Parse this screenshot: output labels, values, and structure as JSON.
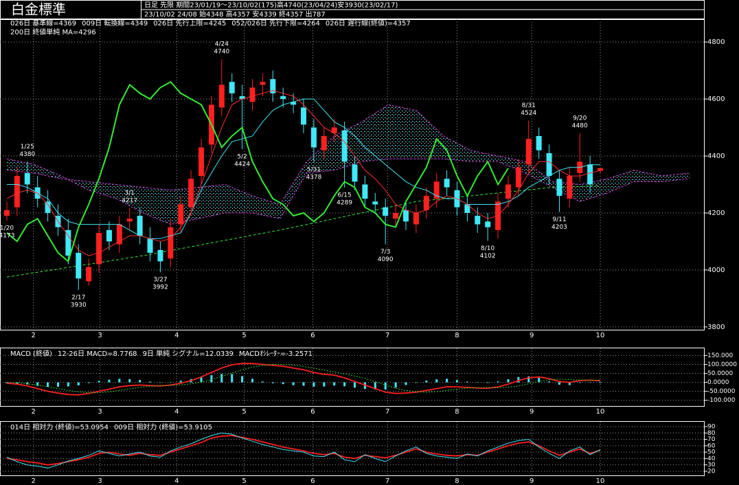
{
  "chart_data": [
    {
      "type": "candlestick",
      "header": {
        "title": "白金標準",
        "line1": "日足 先限 期間23/01/19～23/10/02(175)高4740(23/04/24)安3930(23/02/17)",
        "line2": "23/10/02 24/08 始4348 高4357 安4339 終4357 出787"
      },
      "up_color": "#ff2020",
      "down_color": "#40e8f8",
      "open": [
        4190,
        4220,
        4340,
        4290,
        4240,
        4190,
        4140,
        4060,
        3960,
        4020,
        4140,
        4090,
        4170,
        4190,
        4110,
        4070,
        4040,
        4160,
        4220,
        4330,
        4440,
        4570,
        4660,
        4610,
        4590,
        4650,
        4670,
        4610,
        4590,
        4570,
        4500,
        4420,
        4480,
        4490,
        4370,
        4300,
        4240,
        4220,
        4180,
        4210,
        4160,
        4210,
        4250,
        4320,
        4280,
        4230,
        4190,
        4170,
        4140,
        4250,
        4290,
        4370,
        4470,
        4410,
        4320,
        4250,
        4340,
        4370,
        4348
      ],
      "high": [
        4240,
        4360,
        4380,
        4330,
        4280,
        4230,
        4180,
        4090,
        4040,
        4160,
        4170,
        4190,
        4217,
        4220,
        4150,
        4100,
        4180,
        4260,
        4350,
        4460,
        4610,
        4740,
        4690,
        4650,
        4670,
        4690,
        4700,
        4640,
        4620,
        4600,
        4530,
        4500,
        4530,
        4520,
        4400,
        4330,
        4270,
        4250,
        4230,
        4240,
        4230,
        4290,
        4340,
        4350,
        4310,
        4260,
        4220,
        4200,
        4270,
        4330,
        4390,
        4524,
        4500,
        4440,
        4350,
        4360,
        4480,
        4400,
        4357
      ],
      "low": [
        4173,
        4190,
        4270,
        4220,
        4170,
        4120,
        4020,
        3930,
        3945,
        3990,
        4070,
        4060,
        4140,
        4090,
        4030,
        3992,
        4010,
        4130,
        4190,
        4300,
        4410,
        4540,
        4590,
        4424,
        4560,
        4610,
        4590,
        4570,
        4550,
        4480,
        4378,
        4390,
        4450,
        4289,
        4280,
        4220,
        4200,
        4090,
        4150,
        4140,
        4130,
        4180,
        4220,
        4260,
        4190,
        4170,
        4130,
        4102,
        4110,
        4220,
        4260,
        4340,
        4390,
        4300,
        4203,
        4220,
        4310,
        4270,
        4339
      ],
      "close": [
        4210,
        4330,
        4300,
        4250,
        4200,
        4150,
        4050,
        3970,
        4010,
        4130,
        4100,
        4160,
        4180,
        4120,
        4060,
        4030,
        4150,
        4230,
        4320,
        4430,
        4580,
        4650,
        4620,
        4600,
        4640,
        4660,
        4620,
        4600,
        4580,
        4510,
        4430,
        4470,
        4500,
        4380,
        4310,
        4250,
        4230,
        4190,
        4200,
        4170,
        4200,
        4260,
        4310,
        4290,
        4220,
        4200,
        4160,
        4150,
        4240,
        4300,
        4360,
        4460,
        4420,
        4330,
        4260,
        4330,
        4380,
        4300,
        4357
      ],
      "lines": [
        {
          "name": "026日 基準線=4369",
          "color": "#40e8f8",
          "values": [
            4300,
            4300,
            4290,
            4270,
            4250,
            4200,
            4170,
            4160,
            4160,
            4160,
            4160,
            4160,
            4140,
            4120,
            4110,
            4110,
            4120,
            4130,
            4200,
            4280,
            4340,
            4400,
            4450,
            4460,
            4470,
            4520,
            4560,
            4580,
            4590,
            4600,
            4600,
            4560,
            4520,
            4500,
            4470,
            4430,
            4400,
            4370,
            4340,
            4310,
            4290,
            4280,
            4260,
            4250,
            4250,
            4230,
            4230,
            4230,
            4230,
            4240,
            4260,
            4290,
            4310,
            4330,
            4350,
            4360,
            4360,
            4370,
            4369
          ]
        },
        {
          "name": "009日 転換線=4349",
          "color": "#ff3030",
          "values": [
            4250,
            4270,
            4280,
            4270,
            4230,
            4170,
            4120,
            4070,
            4050,
            4060,
            4080,
            4100,
            4120,
            4120,
            4110,
            4100,
            4110,
            4150,
            4200,
            4300,
            4400,
            4500,
            4580,
            4600,
            4610,
            4620,
            4630,
            4620,
            4610,
            4580,
            4540,
            4500,
            4480,
            4450,
            4400,
            4350,
            4320,
            4280,
            4230,
            4210,
            4200,
            4210,
            4240,
            4260,
            4250,
            4230,
            4200,
            4180,
            4190,
            4230,
            4280,
            4340,
            4380,
            4380,
            4350,
            4330,
            4330,
            4340,
            4349
          ]
        },
        {
          "name": "026日 遅行線(終値)=4357",
          "color": "#33ee33",
          "values": [
            4130,
            4100,
            4160,
            4180,
            4120,
            4060,
            4030,
            4150,
            4230,
            4320,
            4430,
            4580,
            4650,
            4620,
            4600,
            4640,
            4660,
            4620,
            4600,
            4580,
            4510,
            4430,
            4470,
            4500,
            4380,
            4310,
            4250,
            4230,
            4190,
            4200,
            4170,
            4200,
            4260,
            4310,
            4290,
            4220,
            4200,
            4160,
            4150,
            4240,
            4300,
            4360,
            4460,
            4420,
            4330,
            4260,
            4330,
            4380,
            4300,
            4357,
            null,
            null,
            null,
            null,
            null,
            null,
            null,
            null,
            null
          ]
        }
      ],
      "cloud": {
        "fill": "#40e8f8",
        "x": [
          0,
          2.7,
          5.3,
          8,
          10.7,
          13.3,
          16,
          18.7,
          21.3,
          24,
          26.7,
          29.3,
          32,
          34.7,
          37.3,
          40,
          42.7,
          45.3,
          48,
          50.7,
          53.3,
          56,
          58.7,
          61.3,
          64,
          66.7
        ],
        "span_a": {
          "name": "026日 先行上限=4245",
          "color": "#d040e0",
          "values": [
            4350,
            4340,
            4320,
            4310,
            4300,
            4290,
            4280,
            4290,
            4300,
            4260,
            4230,
            4380,
            4470,
            4520,
            4580,
            4560,
            4470,
            4420,
            4400,
            4380,
            4310,
            4300,
            4320,
            4350,
            4330,
            4340
          ]
        },
        "span_b": {
          "name": "052/026日 先行下限=4264",
          "color": "#d040e0",
          "values": [
            4390,
            4370,
            4330,
            4280,
            4250,
            4200,
            4160,
            4180,
            4200,
            4200,
            4180,
            4340,
            4350,
            4380,
            4390,
            4390,
            4390,
            4380,
            4380,
            4340,
            4290,
            4240,
            4270,
            4310,
            4310,
            4320
          ]
        }
      },
      "ma": {
        "name": "200日 終値単純 MA=4296",
        "color": "#33ee33",
        "x": [
          0,
          13.3,
          26.7,
          40,
          53.3,
          58
        ],
        "values": [
          3975,
          4050,
          4140,
          4240,
          4290,
          4296
        ]
      },
      "annotations": [
        {
          "x": 0,
          "date": "1/20",
          "value": 4173,
          "kind": "low"
        },
        {
          "x": 2,
          "date": "1/25",
          "value": 4380,
          "kind": "high"
        },
        {
          "x": 7,
          "date": "2/17",
          "value": 3930,
          "kind": "low"
        },
        {
          "x": 12,
          "date": "3/1",
          "value": 4217,
          "kind": "high"
        },
        {
          "x": 15,
          "date": "3/27",
          "value": 3992,
          "kind": "low"
        },
        {
          "x": 21,
          "date": "4/24",
          "value": 4740,
          "kind": "high"
        },
        {
          "x": 23,
          "date": "5/2",
          "value": 4424,
          "kind": "low"
        },
        {
          "x": 30,
          "date": "5/31",
          "value": 4378,
          "kind": "low"
        },
        {
          "x": 33,
          "date": "6/15",
          "value": 4289,
          "kind": "low"
        },
        {
          "x": 37,
          "date": "7/3",
          "value": 4090,
          "kind": "low"
        },
        {
          "x": 47,
          "date": "8/10",
          "value": 4102,
          "kind": "low"
        },
        {
          "x": 51,
          "date": "8/31",
          "value": 4524,
          "kind": "high"
        },
        {
          "x": 54,
          "date": "9/11",
          "value": 4203,
          "kind": "low"
        },
        {
          "x": 56,
          "date": "9/20",
          "value": 4480,
          "kind": "high"
        }
      ],
      "xlim": [
        -0.67,
        68.2
      ],
      "xticks": [
        {
          "value": 2.6,
          "label": "2"
        },
        {
          "value": 9.1,
          "label": "3"
        },
        {
          "value": 16.6,
          "label": "4"
        },
        {
          "value": 23.2,
          "label": "5"
        },
        {
          "value": 29.9,
          "label": "6"
        },
        {
          "value": 37.2,
          "label": "7"
        },
        {
          "value": 44,
          "label": "8"
        },
        {
          "value": 51.3,
          "label": "9"
        },
        {
          "value": 58,
          "label": "10"
        }
      ],
      "ylim": [
        3790,
        4880
      ],
      "yticks": [
        3800,
        4000,
        4200,
        4400,
        4600,
        4800
      ],
      "grid": true
    },
    {
      "type": "line",
      "title": "MACD (終値)",
      "series": [
        {
          "name": "12-26日 MACD=8.7768",
          "color": "#ff2020",
          "values": [
            -5,
            -10,
            -20,
            -35,
            -50,
            -60,
            -68,
            -70,
            -62,
            -50,
            -38,
            -25,
            -18,
            -15,
            -18,
            -20,
            -15,
            -5,
            10,
            30,
            55,
            80,
            98,
            105,
            105,
            100,
            95,
            90,
            80,
            70,
            55,
            45,
            40,
            25,
            5,
            -15,
            -35,
            -55,
            -62,
            -60,
            -55,
            -45,
            -35,
            -25,
            -25,
            -28,
            -32,
            -33,
            -25,
            -10,
            10,
            25,
            30,
            20,
            5,
            0,
            10,
            12,
            8.7768
          ]
        },
        {
          "name": "9日 単純 シグナル=12.0339",
          "color": "#33cc33",
          "values": [
            0,
            -3,
            -8,
            -15,
            -25,
            -35,
            -45,
            -53,
            -58,
            -58,
            -53,
            -45,
            -36,
            -28,
            -22,
            -19,
            -17,
            -14,
            -8,
            2,
            15,
            33,
            52,
            70,
            85,
            95,
            100,
            100,
            96,
            89,
            79,
            68,
            58,
            47,
            35,
            22,
            5,
            -15,
            -33,
            -45,
            -52,
            -55,
            -52,
            -45,
            -38,
            -32,
            -30,
            -30,
            -30,
            -27,
            -20,
            -8,
            5,
            15,
            18,
            15,
            13,
            12,
            12.0339
          ]
        }
      ],
      "histogram": {
        "name": "MACDｵｼﾚｰﾀｰ=-3.2571",
        "color": "#40e8f8",
        "values": [
          -5,
          -7,
          -12,
          -20,
          -25,
          -25,
          -23,
          -17,
          -4,
          8,
          15,
          20,
          18,
          13,
          4,
          -1,
          2,
          9,
          18,
          28,
          40,
          47,
          46,
          35,
          20,
          5,
          -5,
          -10,
          -16,
          -19,
          -24,
          -23,
          -18,
          -22,
          -30,
          -37,
          -40,
          -40,
          -29,
          -15,
          -3,
          10,
          17,
          20,
          13,
          4,
          -2,
          -3,
          5,
          17,
          30,
          33,
          25,
          5,
          -13,
          -15,
          -3,
          0,
          -3.2571
        ]
      },
      "xlim": [
        -0.67,
        68.2
      ],
      "xticks": [
        {
          "value": 2.6,
          "label": "2"
        },
        {
          "value": 9.1,
          "label": "3"
        },
        {
          "value": 16.6,
          "label": "4"
        },
        {
          "value": 23.2,
          "label": "5"
        },
        {
          "value": 29.9,
          "label": "6"
        },
        {
          "value": 37.2,
          "label": "7"
        },
        {
          "value": 44,
          "label": "8"
        },
        {
          "value": 51.3,
          "label": "9"
        },
        {
          "value": 58,
          "label": "10"
        }
      ],
      "ylim": [
        -132,
        190
      ],
      "yticks": [
        {
          "value": 150,
          "label": "150.000"
        },
        {
          "value": 100,
          "label": "100.0000"
        },
        {
          "value": 50,
          "label": "50.0000"
        },
        {
          "value": 0,
          "label": "0.0000"
        },
        {
          "value": -50,
          "label": "-50.0000"
        },
        {
          "value": -100,
          "label": "-100.000"
        }
      ],
      "grid": true
    },
    {
      "type": "line",
      "series": [
        {
          "name": "014日 相対力 (終値)=53.0954",
          "color": "#ff2020",
          "values": [
            40,
            38,
            35,
            33,
            30,
            32,
            35,
            38,
            42,
            48,
            50,
            47,
            45,
            48,
            46,
            45,
            50,
            55,
            60,
            65,
            72,
            75,
            76,
            73,
            70,
            66,
            62,
            58,
            55,
            52,
            48,
            46,
            48,
            42,
            40,
            45,
            43,
            41,
            45,
            50,
            55,
            50,
            47,
            45,
            44,
            46,
            45,
            50,
            55,
            60,
            64,
            66,
            60,
            52,
            45,
            50,
            55,
            48,
            53.0954
          ]
        },
        {
          "name": "009日 相対力 (終値)=53.9105",
          "color": "#40e8f8",
          "values": [
            42,
            35,
            30,
            28,
            25,
            30,
            36,
            40,
            45,
            52,
            48,
            44,
            47,
            50,
            44,
            42,
            52,
            58,
            63,
            70,
            76,
            80,
            78,
            72,
            67,
            62,
            58,
            54,
            52,
            50,
            44,
            43,
            50,
            38,
            35,
            46,
            40,
            35,
            44,
            52,
            58,
            48,
            44,
            42,
            40,
            47,
            44,
            52,
            58,
            64,
            68,
            70,
            58,
            48,
            40,
            52,
            58,
            46,
            53.9105
          ]
        }
      ],
      "xlim": [
        -0.67,
        68.2
      ],
      "xticks": [
        {
          "value": 2.6,
          "label": "2"
        },
        {
          "value": 9.1,
          "label": "3"
        },
        {
          "value": 16.6,
          "label": "4"
        },
        {
          "value": 23.2,
          "label": "5"
        },
        {
          "value": 29.9,
          "label": "6"
        },
        {
          "value": 37.2,
          "label": "7"
        },
        {
          "value": 44,
          "label": "8"
        },
        {
          "value": 51.3,
          "label": "9"
        },
        {
          "value": 58,
          "label": "10"
        }
      ],
      "ylim": [
        13.5,
        97.5
      ],
      "yticks": [
        90,
        80,
        70,
        60,
        50,
        40,
        30,
        20
      ],
      "grid": true
    }
  ]
}
